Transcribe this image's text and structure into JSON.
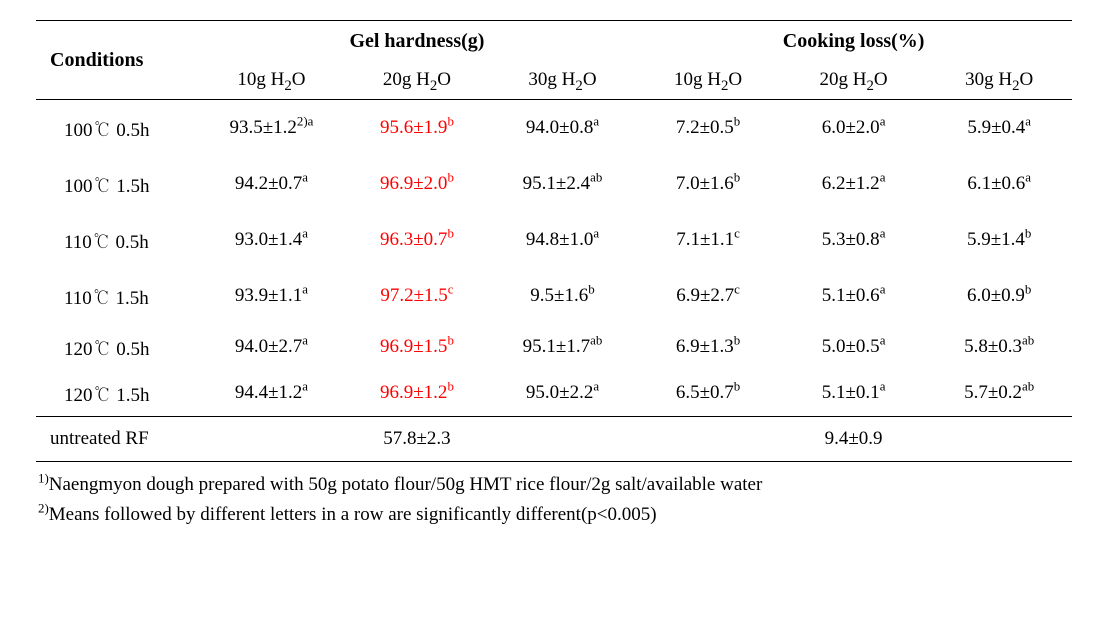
{
  "colors": {
    "text": "#000000",
    "highlight": "#ff0000",
    "background": "#ffffff",
    "rule": "#000000"
  },
  "typography": {
    "base_font": "Times New Roman / Batang, serif",
    "header_fontsize_pt": 15,
    "subheader_fontsize_pt": 14,
    "cell_fontsize_pt": 14,
    "footnote_fontsize_pt": 14
  },
  "header": {
    "conditions": "Conditions",
    "group1": "Gel hardness(g)",
    "group2": "Cooking loss(%)",
    "sub": {
      "g10_a": "10g H",
      "g20_a": "20g H",
      "g30_a": "30g H",
      "c10_a": "10g H",
      "c20_a": "20g H",
      "c30_a": "30g H",
      "sub_o": "O",
      "sub_2": "2"
    }
  },
  "table": {
    "columns": [
      "Conditions",
      "Gel 10g H2O",
      "Gel 20g H2O",
      "Gel 30g H2O",
      "CL 10g H2O",
      "CL 20g H2O",
      "CL 30g H2O"
    ],
    "highlight_column_index": 2,
    "rows": [
      {
        "cond": "100℃ 0.5h",
        "g10": {
          "val": "93.5±1.2",
          "pre_sup": "2)",
          "sup": "a"
        },
        "g20": {
          "val": "95.6±1.9",
          "sup": "b",
          "highlight": true
        },
        "g30": {
          "val": "94.0±0.8",
          "sup": "a"
        },
        "c10": {
          "val": "7.2±0.5",
          "sup": "b"
        },
        "c20": {
          "val": "6.0±2.0",
          "sup": "a"
        },
        "c30": {
          "val": "5.9±0.4",
          "sup": "a"
        }
      },
      {
        "cond": "100℃ 1.5h",
        "g10": {
          "val": "94.2±0.7",
          "sup": "a"
        },
        "g20": {
          "val": "96.9±2.0",
          "sup": "b",
          "highlight": true
        },
        "g30": {
          "val": "95.1±2.4",
          "sup": "ab"
        },
        "c10": {
          "val": "7.0±1.6",
          "sup": "b"
        },
        "c20": {
          "val": "6.2±1.2",
          "sup": "a"
        },
        "c30": {
          "val": "6.1±0.6",
          "sup": "a"
        }
      },
      {
        "cond": "110℃ 0.5h",
        "g10": {
          "val": "93.0±1.4",
          "sup": "a"
        },
        "g20": {
          "val": "96.3±0.7",
          "sup": "b",
          "highlight": true
        },
        "g30": {
          "val": "94.8±1.0",
          "sup": "a"
        },
        "c10": {
          "val": "7.1±1.1",
          "sup": "c"
        },
        "c20": {
          "val": "5.3±0.8",
          "sup": "a"
        },
        "c30": {
          "val": "5.9±1.4",
          "sup": "b"
        }
      },
      {
        "cond": "110℃ 1.5h",
        "g10": {
          "val": "93.9±1.1",
          "sup": "a"
        },
        "g20": {
          "val": "97.2±1.5",
          "sup": "c",
          "highlight": true
        },
        "g30": {
          "val": "9.5±1.6",
          "sup": "b"
        },
        "c10": {
          "val": "6.9±2.7",
          "sup": "c"
        },
        "c20": {
          "val": "5.1±0.6",
          "sup": "a"
        },
        "c30": {
          "val": "6.0±0.9",
          "sup": "b"
        }
      },
      {
        "cond": "120℃ 0.5h",
        "g10": {
          "val": "94.0±2.7",
          "sup": "a"
        },
        "g20": {
          "val": "96.9±1.5",
          "sup": "b",
          "highlight": true
        },
        "g30": {
          "val": "95.1±1.7",
          "sup": "ab"
        },
        "c10": {
          "val": "6.9±1.3",
          "sup": "b"
        },
        "c20": {
          "val": "5.0±0.5",
          "sup": "a"
        },
        "c30": {
          "val": "5.8±0.3",
          "sup": "ab"
        }
      },
      {
        "cond": "120℃ 1.5h",
        "g10": {
          "val": "94.4±1.2",
          "sup": "a"
        },
        "g20": {
          "val": "96.9±1.2",
          "sup": "b",
          "highlight": true
        },
        "g30": {
          "val": "95.0±2.2",
          "sup": "a"
        },
        "c10": {
          "val": "6.5±0.7",
          "sup": "b"
        },
        "c20": {
          "val": "5.1±0.1",
          "sup": "a"
        },
        "c30": {
          "val": "5.7±0.2",
          "sup": "ab"
        }
      }
    ],
    "untreated": {
      "label": "untreated RF",
      "gel": "57.8±2.3",
      "cl": "9.4±0.9"
    }
  },
  "footnotes": {
    "fn1_sup": "1)",
    "fn1": "Naengmyon dough prepared with 50g potato flour/50g HMT rice flour/2g salt/available water",
    "fn2_sup": "2)",
    "fn2": "Means followed by different letters in a row are significantly different(p<0.005)"
  }
}
